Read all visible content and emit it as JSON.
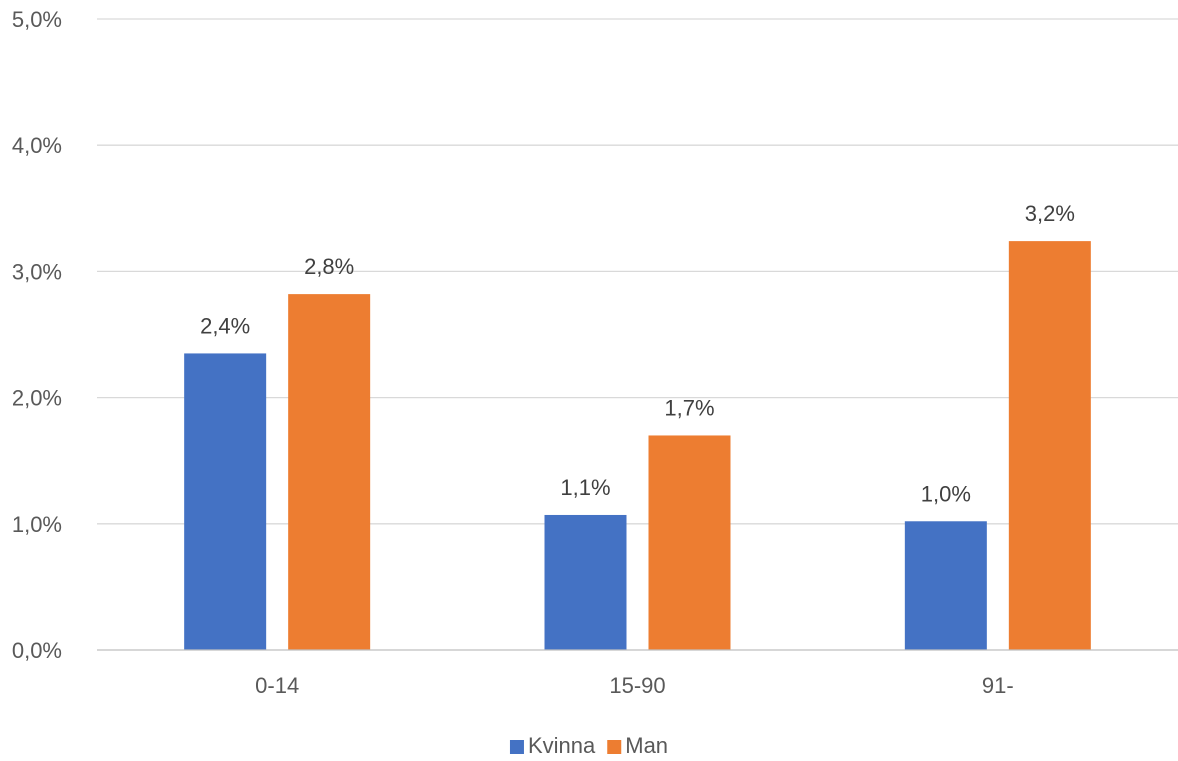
{
  "chart_data": {
    "type": "bar",
    "categories": [
      "0-14",
      "15-90",
      "91-"
    ],
    "series": [
      {
        "name": "Kvinna",
        "values": [
          2.35,
          1.07,
          1.02
        ],
        "labels": [
          "2,4%",
          "1,1%",
          "1,0%"
        ],
        "color": "#4472C4"
      },
      {
        "name": "Man",
        "values": [
          2.82,
          1.7,
          3.24
        ],
        "labels": [
          "2,8%",
          "1,7%",
          "3,2%"
        ],
        "color": "#ED7D31"
      }
    ],
    "yticks": [
      0,
      1,
      2,
      3,
      4,
      5
    ],
    "ytick_labels": [
      "0,0%",
      "1,0%",
      "2,0%",
      "3,0%",
      "4,0%",
      "5,0%"
    ],
    "ylim": [
      0,
      5
    ],
    "unit": "%",
    "grid": true,
    "legend_position": "bottom"
  }
}
